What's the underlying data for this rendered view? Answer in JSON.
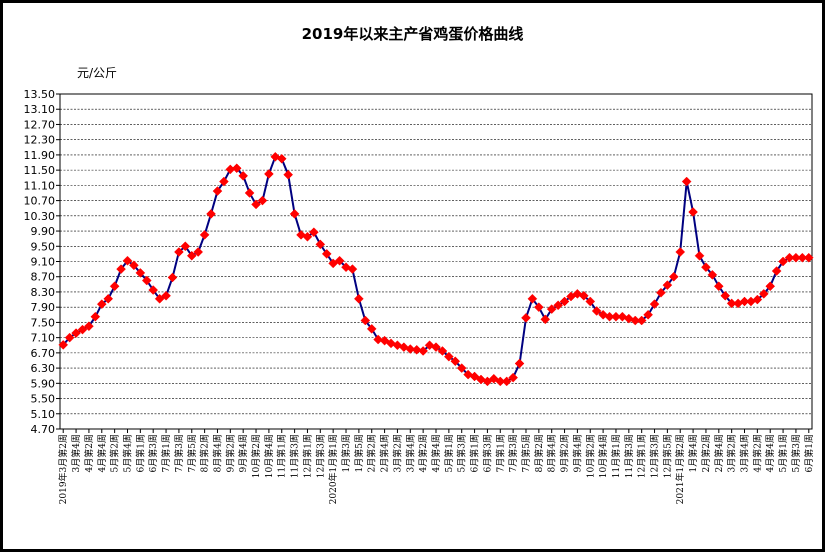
{
  "chart_data": {
    "type": "line",
    "title": "2019年以来主产省鸡蛋价格曲线",
    "ylabel": "元/公斤",
    "xlabel": "",
    "ylim": [
      4.7,
      13.5
    ],
    "yticks": [
      "4.70",
      "5.10",
      "5.50",
      "5.90",
      "6.30",
      "6.70",
      "7.10",
      "7.50",
      "7.90",
      "8.30",
      "8.70",
      "9.10",
      "9.50",
      "9.90",
      "10.30",
      "10.70",
      "11.10",
      "11.50",
      "11.90",
      "12.30",
      "12.70",
      "13.10",
      "13.50"
    ],
    "grid": true,
    "legend": "none",
    "line_color": "#000080",
    "marker_color": "#ff0000",
    "x_tick_labels": [
      "2019年3月第2周",
      "3月第4周",
      "4月第2周",
      "4月第4周",
      "5月第2周",
      "5月第4周",
      "6月第1周",
      "6月第3周",
      "7月第1周",
      "7月第3周",
      "7月第5周",
      "8月第2周",
      "8月第4周",
      "9月第2周",
      "9月第4周",
      "10月第2周",
      "10月第4周",
      "11月第1周",
      "11月第3周",
      "12月第1周",
      "12月第3周",
      "2020年1月第1周",
      "1月第3周",
      "1月第5周",
      "2月第2周",
      "2月第4周",
      "3月第2周",
      "3月第4周",
      "4月第2周",
      "4月第4周",
      "5月第1周",
      "5月第3周",
      "6月第1周",
      "6月第3周",
      "7月第1周",
      "7月第3周",
      "7月第5周",
      "8月第2周",
      "8月第4周",
      "9月第2周",
      "9月第4周",
      "10月第2周",
      "10月第4周",
      "11月第1周",
      "11月第3周",
      "12月第1周",
      "12月第3周",
      "12月第5周",
      "2021年1月第2周",
      "1月第4周",
      "2月第2周",
      "2月第4周",
      "3月第2周",
      "3月第4周",
      "4月第2周",
      "4月第4周",
      "5月第1周",
      "5月第3周",
      "6月第1周"
    ],
    "values": [
      6.91,
      7.1,
      7.22,
      7.31,
      7.4,
      7.65,
      7.98,
      8.12,
      8.45,
      8.9,
      9.12,
      9.0,
      8.8,
      8.6,
      8.35,
      8.12,
      8.2,
      8.68,
      9.35,
      9.5,
      9.25,
      9.35,
      9.8,
      10.35,
      10.95,
      11.2,
      11.52,
      11.55,
      11.35,
      10.9,
      10.6,
      10.7,
      11.4,
      11.85,
      11.8,
      11.38,
      10.35,
      9.8,
      9.75,
      9.87,
      9.55,
      9.3,
      9.05,
      9.12,
      8.95,
      8.9,
      8.12,
      7.55,
      7.33,
      7.05,
      7.02,
      6.95,
      6.9,
      6.85,
      6.8,
      6.78,
      6.75,
      6.9,
      6.85,
      6.75,
      6.6,
      6.48,
      6.3,
      6.13,
      6.08,
      6.0,
      5.95,
      6.02,
      5.95,
      5.95,
      6.05,
      6.42,
      7.62,
      8.12,
      7.9,
      7.58,
      7.85,
      7.95,
      8.05,
      8.18,
      8.25,
      8.2,
      8.05,
      7.8,
      7.7,
      7.65,
      7.65,
      7.65,
      7.6,
      7.55,
      7.55,
      7.7,
      7.98,
      8.28,
      8.48,
      8.7,
      9.35,
      11.2,
      10.4,
      9.25,
      8.95,
      8.75,
      8.45,
      8.2,
      8.0,
      8.0,
      8.05,
      8.05,
      8.1,
      8.25,
      8.45,
      8.85,
      9.1,
      9.2,
      9.2,
      9.2,
      9.2
    ]
  }
}
